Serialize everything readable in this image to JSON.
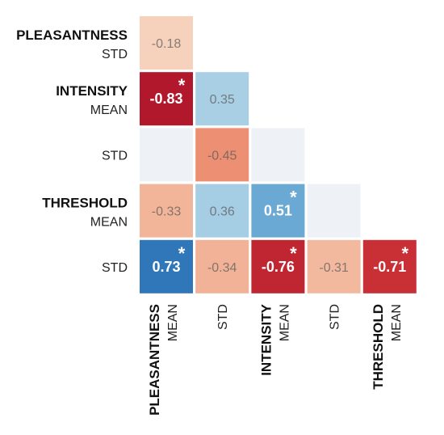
{
  "chart_data": {
    "type": "heatmap",
    "variables": [
      {
        "group": "PLEASANTNESS",
        "stat": "MEAN"
      },
      {
        "group": "PLEASANTNESS",
        "stat": "STD"
      },
      {
        "group": "INTENSITY",
        "stat": "MEAN"
      },
      {
        "group": "INTENSITY",
        "stat": "STD"
      },
      {
        "group": "THRESHOLD",
        "stat": "MEAN"
      },
      {
        "group": "THRESHOLD",
        "stat": "STD"
      }
    ],
    "row_labels": [
      {
        "group": "PLEASANTNESS",
        "stat": "STD"
      },
      {
        "group": "INTENSITY",
        "stat": "MEAN"
      },
      {
        "group": "",
        "stat": "STD"
      },
      {
        "group": "THRESHOLD",
        "stat": "MEAN"
      },
      {
        "group": "",
        "stat": "STD"
      }
    ],
    "column_labels": [
      {
        "group": "PLEASANTNESS",
        "stat": "MEAN"
      },
      {
        "group": "",
        "stat": "STD"
      },
      {
        "group": "INTENSITY",
        "stat": "MEAN"
      },
      {
        "group": "",
        "stat": "STD"
      },
      {
        "group": "THRESHOLD",
        "stat": "MEAN"
      }
    ],
    "cells": [
      [
        {
          "value": -0.18,
          "label": "-0.18",
          "significant": false
        }
      ],
      [
        {
          "value": -0.83,
          "label": "-0.83",
          "significant": true
        },
        {
          "value": 0.35,
          "label": "0.35",
          "significant": false
        }
      ],
      [
        {
          "value": 0.0,
          "label": "",
          "significant": false
        },
        {
          "value": -0.45,
          "label": "-0.45",
          "significant": false
        },
        {
          "value": 0.0,
          "label": "",
          "significant": false
        }
      ],
      [
        {
          "value": -0.33,
          "label": "-0.33",
          "significant": false
        },
        {
          "value": 0.36,
          "label": "0.36",
          "significant": false
        },
        {
          "value": 0.51,
          "label": "0.51",
          "significant": true
        },
        {
          "value": 0.0,
          "label": "",
          "significant": false
        }
      ],
      [
        {
          "value": 0.73,
          "label": "0.73",
          "significant": true
        },
        {
          "value": -0.34,
          "label": "-0.34",
          "significant": false
        },
        {
          "value": -0.76,
          "label": "-0.76",
          "significant": true
        },
        {
          "value": -0.31,
          "label": "-0.31",
          "significant": false
        },
        {
          "value": -0.71,
          "label": "-0.71",
          "significant": true
        }
      ]
    ],
    "significance_marker": "*",
    "color_scale": {
      "negative": "#b2182b",
      "neutral": "#eef2f6",
      "positive": "#2166ac",
      "range": [
        -1,
        1
      ]
    }
  }
}
